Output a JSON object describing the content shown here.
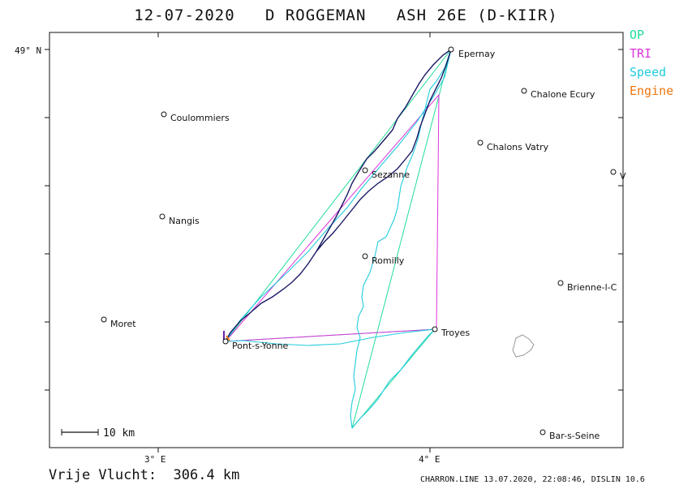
{
  "title": "12-07-2020   D ROGGEMAN   ASH 26E (D-KIIR)",
  "legend": [
    {
      "label": "OP",
      "color": "#22dd99"
    },
    {
      "label": "TRI",
      "color": "#dd33dd"
    },
    {
      "label": "Speed",
      "color": "#22ccdd"
    },
    {
      "label": "Engine",
      "color": "#ee7711"
    }
  ],
  "axes": {
    "lat_label": "49° N",
    "lon_labels": [
      "3° E",
      "4° E"
    ]
  },
  "places": [
    {
      "name": "Epernay"
    },
    {
      "name": "Chalone Ecury"
    },
    {
      "name": "Coulommiers"
    },
    {
      "name": "Chalons Vatry"
    },
    {
      "name": "Sezanne"
    },
    {
      "name": "V"
    },
    {
      "name": "Nangis"
    },
    {
      "name": "Romilly"
    },
    {
      "name": "Brienne-l-C"
    },
    {
      "name": "Moret"
    },
    {
      "name": "Troyes"
    },
    {
      "name": "Pont-s-Yonne"
    },
    {
      "name": "Bar-s-Seine"
    }
  ],
  "scale_label": "10  km",
  "footer": {
    "distance": "Vrije Vlucht:  306.4 km",
    "credit": "CHARRON.LINE 13.07.2020, 22:08:46, DISLIN 10.6"
  }
}
